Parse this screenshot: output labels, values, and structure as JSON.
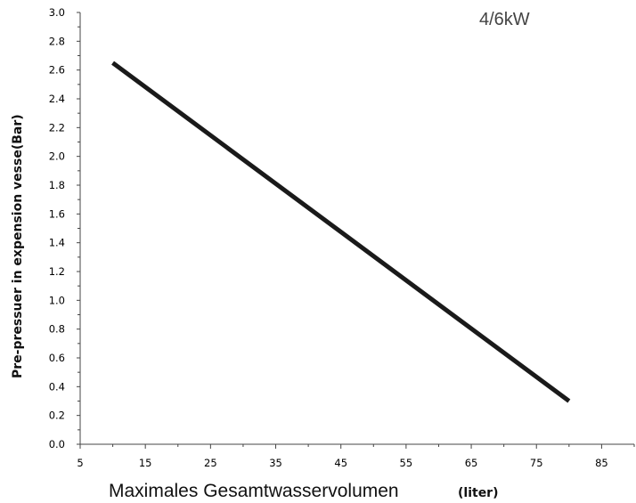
{
  "chart_data": {
    "type": "line",
    "annotation": "4/6kW",
    "xlabel": "Maximales Gesamtwasservolumen",
    "xlabel_unit": "(liter)",
    "ylabel": "Pre-pressuer in expension vesse(Bar)",
    "xlim": [
      5,
      90
    ],
    "ylim": [
      0.0,
      3.0
    ],
    "x_ticks": [
      5,
      15,
      25,
      35,
      45,
      55,
      65,
      75,
      85
    ],
    "y_ticks": [
      "0.0",
      "0.2",
      "0.4",
      "0.6",
      "0.8",
      "1.0",
      "1.2",
      "1.4",
      "1.6",
      "1.8",
      "2.0",
      "2.2",
      "2.4",
      "2.6",
      "2.8",
      "3.0"
    ],
    "grid": false,
    "series": [
      {
        "x": [
          10,
          80
        ],
        "y": [
          2.65,
          0.3
        ]
      }
    ]
  }
}
